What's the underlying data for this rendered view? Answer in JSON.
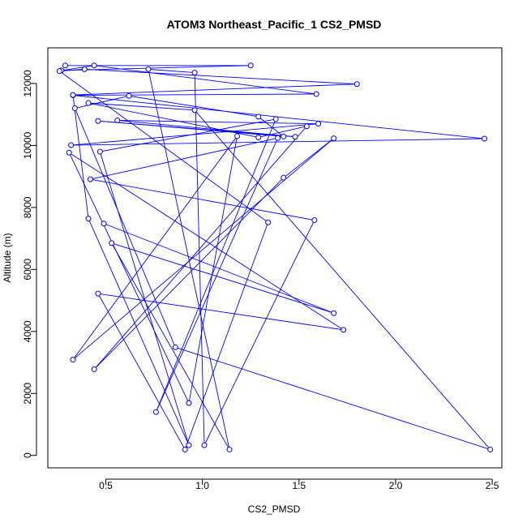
{
  "chart_data": {
    "type": "line",
    "title": "ATOM3 Northeast_Pacific_1 CS2_PMSD",
    "xlabel": "CS2_PMSD",
    "ylabel": "Altitude (m)",
    "xlim": [
      0.2,
      2.55
    ],
    "ylim": [
      -400,
      13150
    ],
    "x_ticks": [
      0.5,
      1.0,
      1.5,
      2.0,
      2.5
    ],
    "x_tick_labels": [
      "0.5",
      "1.0",
      "1.5",
      "2.0",
      "2.5"
    ],
    "y_ticks": [
      0,
      2000,
      4000,
      6000,
      8000,
      10000,
      12000
    ],
    "y_tick_labels": [
      "0",
      "2000",
      "4000",
      "6000",
      "8000",
      "10000",
      "12000"
    ],
    "grid": false,
    "legend": "none",
    "marker": "open-circle",
    "line_color": "#0000ff",
    "series": [
      {
        "x": [
          0.29,
          1.25,
          0.27,
          0.44,
          1.59,
          0.33,
          2.46,
          0.32,
          1.6,
          0.56,
          1.48,
          0.46,
          1.42,
          1.29,
          0.62,
          0.34,
          0.86,
          2.49,
          0.96,
          0.41,
          1.29,
          1.54,
          0.44,
          1.42,
          1.68,
          0.33,
          1.18,
          0.93,
          0.31,
          1.73,
          0.46,
          0.91,
          1.34,
          0.26,
          0.39,
          1.8,
          0.33,
          0.41,
          0.93,
          0.47,
          1.38,
          0.76,
          1.39,
          0.42,
          1.58,
          1.01,
          0.96,
          0.72,
          1.14,
          0.53,
          1.68,
          0.49
        ],
        "y": [
          12580,
          12580,
          12420,
          12580,
          11660,
          11620,
          10220,
          10010,
          10700,
          10810,
          10280,
          10790,
          10290,
          10930,
          11600,
          11200,
          3490,
          190,
          11140,
          11370,
          10260,
          10620,
          2780,
          8960,
          10230,
          3090,
          10300,
          1690,
          9770,
          4050,
          5220,
          190,
          7520,
          12400,
          12460,
          11980,
          11630,
          7640,
          330,
          9800,
          10850,
          1400,
          10240,
          8910,
          7590,
          330,
          12350,
          12460,
          190,
          6850,
          4590,
          7480
        ]
      }
    ]
  }
}
